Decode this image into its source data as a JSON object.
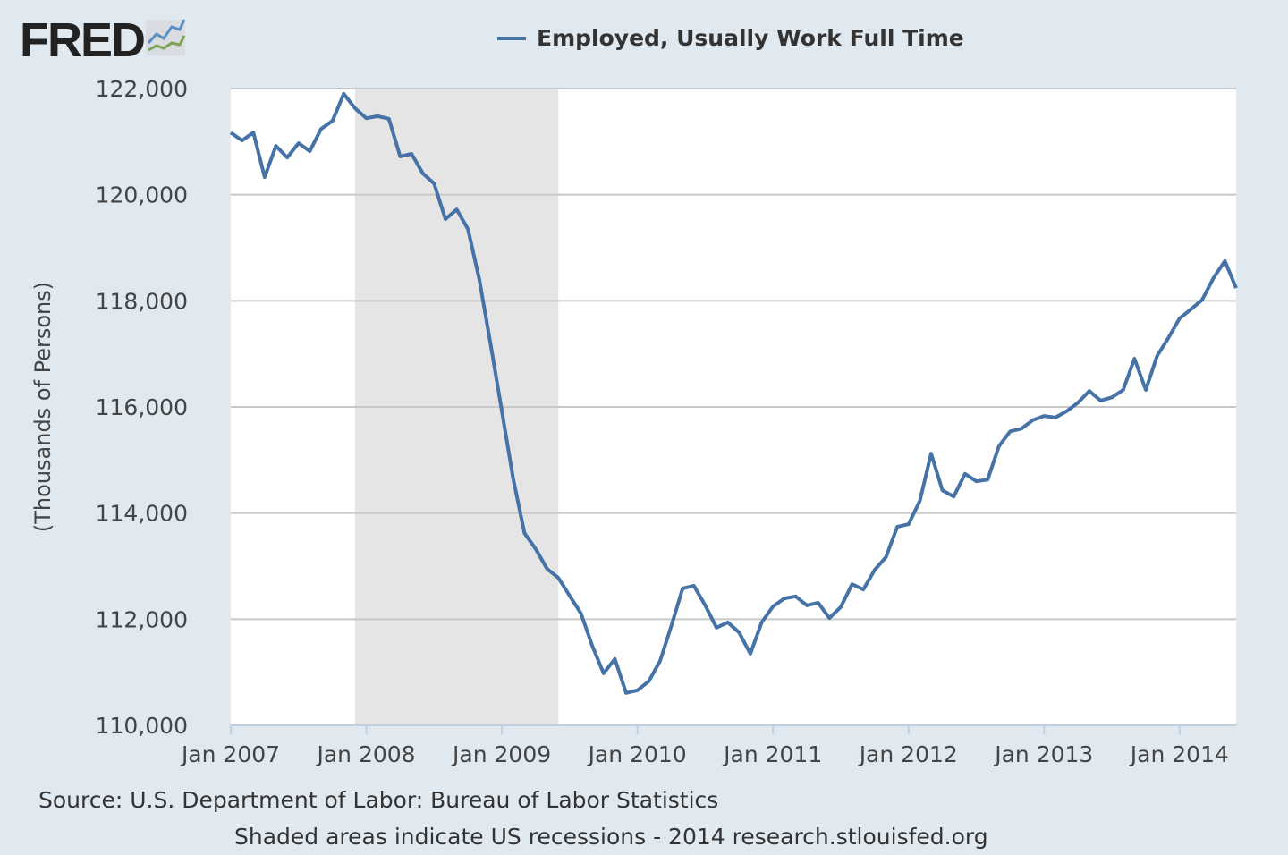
{
  "logo": {
    "text": "FRED"
  },
  "chart_data": {
    "type": "line",
    "title": "",
    "legend": [
      "Employed, Usually Work Full Time"
    ],
    "legend_placement": "top-center",
    "ylabel": "(Thousands of Persons)",
    "xlabel": "",
    "ylim": [
      110000,
      122000
    ],
    "yticks": [
      110000,
      112000,
      114000,
      116000,
      118000,
      120000,
      122000
    ],
    "ytick_labels": [
      "110,000",
      "112,000",
      "114,000",
      "116,000",
      "118,000",
      "120,000",
      "122,000"
    ],
    "x_start": "Jan 2007",
    "x_end": "Jun 2014",
    "xtick_month_index": [
      0,
      12,
      24,
      36,
      48,
      60,
      72,
      84
    ],
    "xtick_labels": [
      "Jan 2007",
      "Jan 2008",
      "Jan 2009",
      "Jan 2010",
      "Jan 2011",
      "Jan 2012",
      "Jan 2013",
      "Jan 2014"
    ],
    "grid": true,
    "recessions": [
      {
        "start_month_index": 11,
        "end_month_index": 29,
        "label": "Dec 2007 - Jun 2009"
      }
    ],
    "series": [
      {
        "name": "Employed, Usually Work Full Time",
        "color": "#4572a7",
        "frequency": "monthly",
        "values": [
          121170,
          121020,
          121170,
          120330,
          120920,
          120700,
          120970,
          120820,
          121240,
          121390,
          121900,
          121630,
          121440,
          121480,
          121430,
          120720,
          120770,
          120400,
          120210,
          119540,
          119720,
          119350,
          118410,
          117180,
          115920,
          114650,
          113620,
          113320,
          112950,
          112780,
          112440,
          112110,
          111500,
          110980,
          111250,
          110610,
          110660,
          110830,
          111210,
          111870,
          112580,
          112630,
          112260,
          111840,
          111940,
          111750,
          111350,
          111940,
          112240,
          112390,
          112430,
          112260,
          112310,
          112020,
          112230,
          112660,
          112560,
          112930,
          113170,
          113740,
          113790,
          114230,
          115120,
          114430,
          114310,
          114740,
          114600,
          114630,
          115260,
          115540,
          115590,
          115750,
          115830,
          115800,
          115920,
          116080,
          116300,
          116120,
          116180,
          116320,
          116910,
          116320,
          116960,
          117300,
          117670,
          117840,
          118020,
          118430,
          118750,
          118240
        ]
      }
    ]
  },
  "footer": {
    "source": "Source: U.S. Department of Labor: Bureau of Labor Statistics",
    "note": "Shaded areas indicate US recessions - 2014 research.stlouisfed.org"
  },
  "colors": {
    "background": "#e1e9f0",
    "plot": "#ffffff",
    "recession": "#e5e5e5",
    "grid": "#c8c8c8",
    "line": "#4572a7"
  }
}
